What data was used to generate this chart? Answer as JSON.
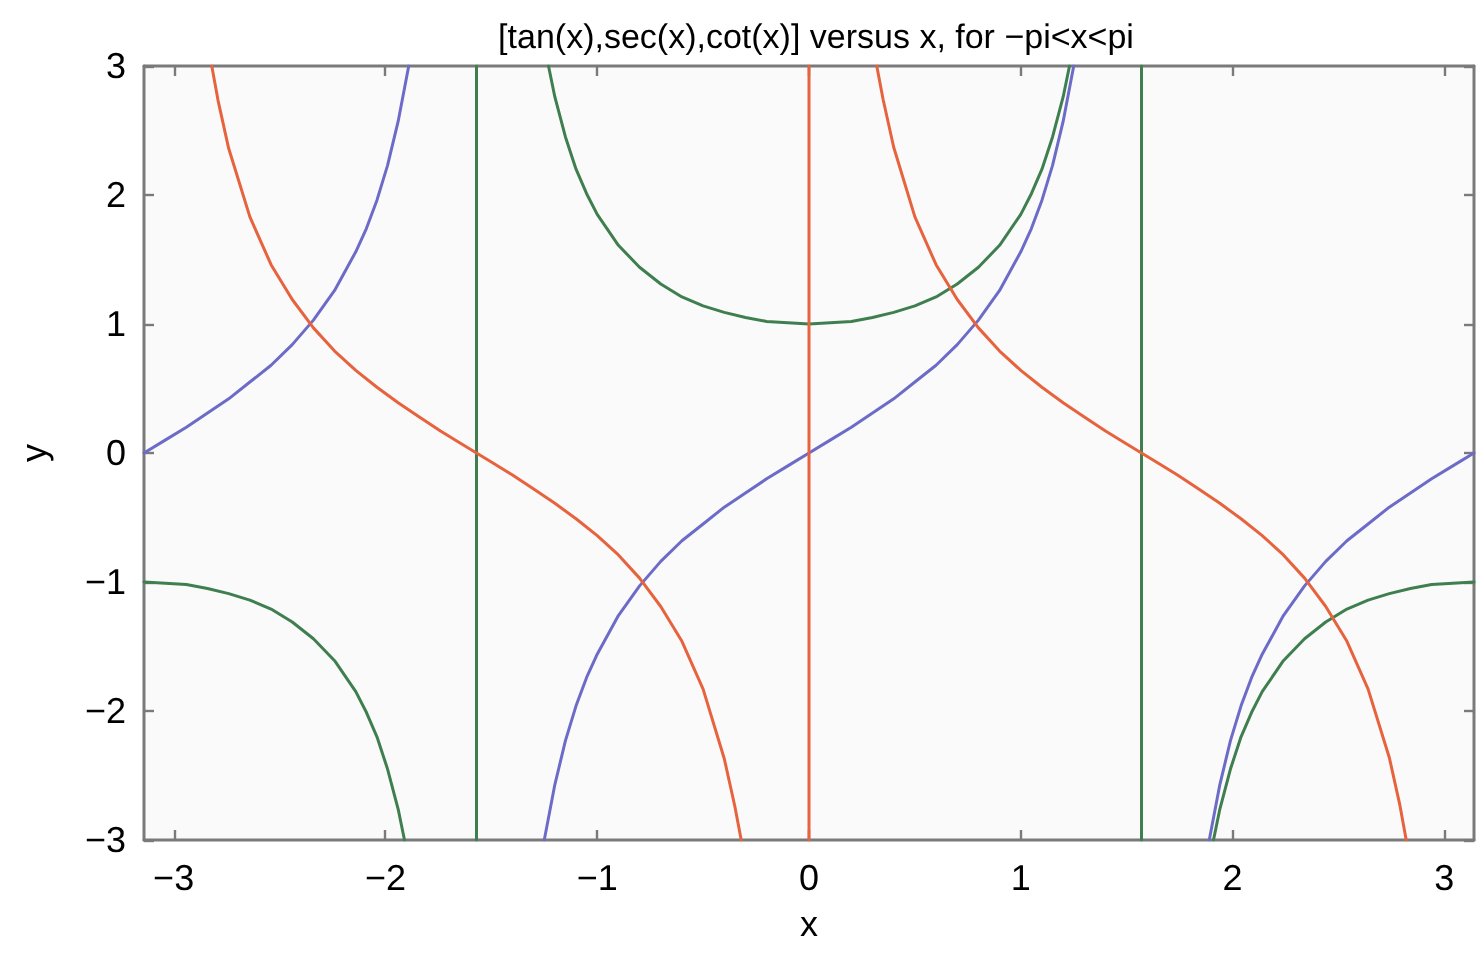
{
  "chart_data": {
    "type": "line",
    "title": "[tan(x),sec(x),cot(x)] versus x, for −pi<x<pi",
    "xlabel": "x",
    "ylabel": "y",
    "xlim": [
      -3.14,
      3.14
    ],
    "ylim": [
      -3,
      3
    ],
    "xticks": [
      {
        "value": -3,
        "label": "−3"
      },
      {
        "value": -2,
        "label": "−2"
      },
      {
        "value": -1,
        "label": "−1"
      },
      0,
      1,
      2,
      3
    ],
    "yticks": [
      {
        "value": -3,
        "label": "−3"
      },
      {
        "value": -2,
        "label": "−2"
      },
      {
        "value": -1,
        "label": "−1"
      },
      0,
      1,
      2,
      3
    ],
    "grid": false,
    "marker": "none",
    "line_style": "solid",
    "series": [
      {
        "color": "#6c6cc8",
        "x": [
          -3.14,
          -3.04,
          -2.94,
          -2.84,
          -2.74,
          -2.64,
          -2.54,
          -2.44,
          -2.34,
          -2.24,
          -2.14,
          -2.09,
          -2.04,
          -1.99,
          -1.94,
          -1.89
        ],
        "values": [
          0,
          0.1,
          0.2,
          0.31,
          0.42,
          0.55,
          0.68,
          0.84,
          1.03,
          1.26,
          1.56,
          1.74,
          1.96,
          2.23,
          2.57,
          3
        ]
      },
      {
        "color": "#6c6cc8",
        "x": [
          -1.25,
          -1.2,
          -1.15,
          -1.1,
          -1.05,
          -1.0,
          -0.9,
          -0.8,
          -0.7,
          -0.6,
          -0.5,
          -0.4,
          -0.3,
          -0.2,
          -0.1,
          0,
          0.1,
          0.2,
          0.3,
          0.4,
          0.5,
          0.6,
          0.7,
          0.8,
          0.9,
          1.0,
          1.05,
          1.1,
          1.15,
          1.2,
          1.25
        ],
        "values": [
          -3,
          -2.57,
          -2.23,
          -1.96,
          -1.74,
          -1.56,
          -1.26,
          -1.03,
          -0.84,
          -0.68,
          -0.55,
          -0.42,
          -0.31,
          -0.2,
          -0.1,
          0,
          0.1,
          0.2,
          0.31,
          0.42,
          0.55,
          0.68,
          0.84,
          1.03,
          1.26,
          1.56,
          1.74,
          1.96,
          2.23,
          2.57,
          3
        ]
      },
      {
        "color": "#6c6cc8",
        "x": [
          1.89,
          1.94,
          1.99,
          2.04,
          2.09,
          2.14,
          2.24,
          2.34,
          2.44,
          2.54,
          2.64,
          2.74,
          2.84,
          2.94,
          3.04,
          3.14
        ],
        "values": [
          -3,
          -2.57,
          -2.23,
          -1.96,
          -1.74,
          -1.56,
          -1.26,
          -1.03,
          -0.84,
          -0.68,
          -0.55,
          -0.42,
          -0.31,
          -0.2,
          -0.1,
          0
        ]
      },
      {
        "color": "#3f7f4f",
        "x": [
          -3.14,
          -3.04,
          -2.94,
          -2.84,
          -2.74,
          -2.64,
          -2.54,
          -2.44,
          -2.34,
          -2.24,
          -2.14,
          -2.09,
          -2.04,
          -1.99,
          -1.94,
          -1.91
        ],
        "values": [
          -1,
          -1.01,
          -1.02,
          -1.05,
          -1.09,
          -1.14,
          -1.21,
          -1.31,
          -1.44,
          -1.61,
          -1.85,
          -2.01,
          -2.2,
          -2.45,
          -2.76,
          -3
        ]
      },
      {
        "color": "#3f7f4f",
        "x": [
          -1.57,
          -1.57
        ],
        "values": [
          -3,
          3
        ]
      },
      {
        "color": "#3f7f4f",
        "x": [
          -1.23,
          -1.2,
          -1.15,
          -1.1,
          -1.05,
          -1.0,
          -0.9,
          -0.8,
          -0.7,
          -0.6,
          -0.5,
          -0.4,
          -0.3,
          -0.2,
          -0.1,
          0,
          0.1,
          0.2,
          0.3,
          0.4,
          0.5,
          0.6,
          0.7,
          0.8,
          0.9,
          1.0,
          1.05,
          1.1,
          1.15,
          1.2,
          1.23
        ],
        "values": [
          3,
          2.76,
          2.45,
          2.2,
          2.01,
          1.85,
          1.61,
          1.44,
          1.31,
          1.21,
          1.14,
          1.09,
          1.05,
          1.02,
          1.01,
          1,
          1.01,
          1.02,
          1.05,
          1.09,
          1.14,
          1.21,
          1.31,
          1.44,
          1.61,
          1.85,
          2.01,
          2.2,
          2.45,
          2.76,
          3
        ]
      },
      {
        "color": "#3f7f4f",
        "x": [
          1.57,
          1.57
        ],
        "values": [
          3,
          -3
        ]
      },
      {
        "color": "#3f7f4f",
        "x": [
          1.91,
          1.94,
          1.99,
          2.04,
          2.09,
          2.14,
          2.24,
          2.34,
          2.44,
          2.54,
          2.64,
          2.74,
          2.84,
          2.94,
          3.04,
          3.14
        ],
        "values": [
          -3,
          -2.76,
          -2.45,
          -2.2,
          -2.01,
          -1.85,
          -1.61,
          -1.44,
          -1.31,
          -1.21,
          -1.14,
          -1.09,
          -1.05,
          -1.02,
          -1.01,
          -1
        ]
      },
      {
        "color": "#e6633e",
        "x": [
          -2.82,
          -2.79,
          -2.74,
          -2.64,
          -2.54,
          -2.44,
          -2.34,
          -2.24,
          -2.14,
          -2.04,
          -1.94,
          -1.84,
          -1.74,
          -1.64,
          -1.57,
          -1.5,
          -1.4,
          -1.3,
          -1.2,
          -1.1,
          -1.0,
          -0.9,
          -0.8,
          -0.7,
          -0.6,
          -0.5,
          -0.4,
          -0.35,
          -0.32
        ],
        "values": [
          3,
          2.73,
          2.36,
          1.83,
          1.46,
          1.19,
          0.97,
          0.79,
          0.64,
          0.51,
          0.39,
          0.28,
          0.17,
          0.07,
          0,
          -0.07,
          -0.17,
          -0.28,
          -0.39,
          -0.51,
          -0.64,
          -0.79,
          -0.97,
          -1.19,
          -1.46,
          -1.83,
          -2.37,
          -2.74,
          -3
        ]
      },
      {
        "color": "#e6633e",
        "x": [
          0,
          0
        ],
        "values": [
          -3,
          3
        ]
      },
      {
        "color": "#e6633e",
        "x": [
          0.32,
          0.35,
          0.4,
          0.5,
          0.6,
          0.7,
          0.8,
          0.9,
          1.0,
          1.1,
          1.2,
          1.3,
          1.4,
          1.5,
          1.57,
          1.64,
          1.74,
          1.84,
          1.94,
          2.04,
          2.14,
          2.24,
          2.34,
          2.44,
          2.54,
          2.64,
          2.74,
          2.79,
          2.82
        ],
        "values": [
          3,
          2.74,
          2.37,
          1.83,
          1.46,
          1.19,
          0.97,
          0.79,
          0.64,
          0.51,
          0.39,
          0.28,
          0.17,
          0.07,
          0,
          -0.07,
          -0.17,
          -0.28,
          -0.39,
          -0.51,
          -0.64,
          -0.79,
          -0.97,
          -1.19,
          -1.46,
          -1.83,
          -2.36,
          -2.73,
          -3
        ]
      }
    ]
  }
}
